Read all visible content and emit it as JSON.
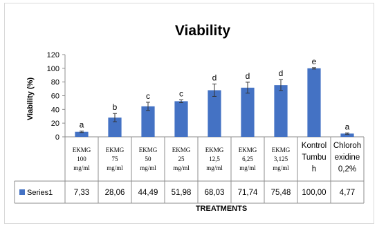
{
  "chart_data": {
    "type": "bar",
    "title": "Viability",
    "ylabel": "Viability (%)",
    "xlabel": "TREATMENTS",
    "ylim": [
      0,
      120
    ],
    "yticks": [
      0,
      20,
      40,
      60,
      80,
      100,
      120
    ],
    "grid": false,
    "legend_placement": "data-table-row",
    "bar_color": "#4472c4",
    "categories": [
      {
        "lines": [
          "EKMG",
          "100",
          "mg/ml"
        ],
        "style": "serif-small"
      },
      {
        "lines": [
          "EKMG",
          "75",
          "mg/ml"
        ],
        "style": "serif-small"
      },
      {
        "lines": [
          "EKMG",
          "50",
          "mg/ml"
        ],
        "style": "serif-small"
      },
      {
        "lines": [
          "EKMG",
          "25",
          "mg/ml"
        ],
        "style": "serif-small"
      },
      {
        "lines": [
          "EKMG",
          "12,5",
          "mg/ml"
        ],
        "style": "serif-small"
      },
      {
        "lines": [
          "EKMG",
          "6,25",
          "mg/ml"
        ],
        "style": "serif-small"
      },
      {
        "lines": [
          "EKMG",
          "3,125",
          "mg/ml"
        ],
        "style": "serif-small"
      },
      {
        "lines": [
          "Kontrol",
          "Tumbu",
          "h"
        ],
        "style": "sans"
      },
      {
        "lines": [
          "Chloroh",
          "exidine",
          "0,2%"
        ],
        "style": "sans"
      }
    ],
    "series": [
      {
        "name": "Series1",
        "values": [
          7.33,
          28.06,
          44.49,
          51.98,
          68.03,
          71.74,
          75.48,
          100.0,
          4.77
        ],
        "value_labels": [
          "7,33",
          "28,06",
          "44,49",
          "51,98",
          "68,03",
          "71,74",
          "75,48",
          "100,00",
          "4,77"
        ],
        "error": [
          1,
          6,
          6,
          2,
          9,
          8,
          8,
          1,
          1
        ]
      }
    ],
    "annotations": [
      "a",
      "b",
      "c",
      "c",
      "d",
      "d",
      "d",
      "e",
      "a"
    ]
  }
}
